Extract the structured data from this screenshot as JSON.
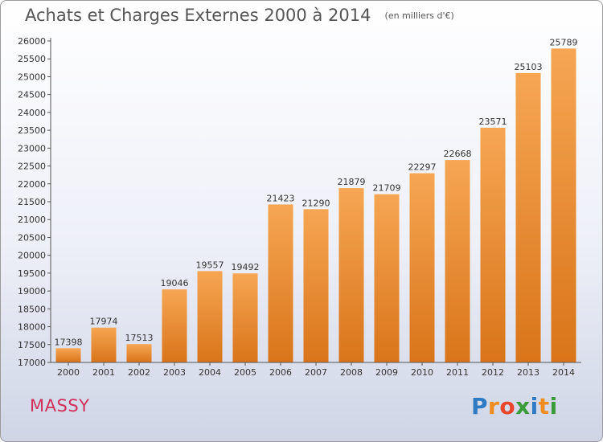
{
  "title": "Achats et Charges Externes 2000 à 2014",
  "subtitle": "(en milliers d'€)",
  "city": "MASSY",
  "logo": {
    "text": "Proxiti",
    "letters": [
      "P",
      "r",
      "o",
      "x",
      "i",
      "t",
      "i"
    ],
    "colors": [
      "#2e7bc4",
      "#f08c1e",
      "#e8452c",
      "#3a9b3a",
      "#2e7bc4",
      "#f08c1e",
      "#3a9b3a"
    ]
  },
  "colors": {
    "bar_top": "#f6a653",
    "bar_bottom": "#d97419",
    "title": "#555555",
    "city": "#d0305a"
  },
  "chart_data": {
    "type": "bar",
    "categories": [
      "2000",
      "2001",
      "2002",
      "2003",
      "2004",
      "2005",
      "2006",
      "2007",
      "2008",
      "2009",
      "2010",
      "2011",
      "2012",
      "2013",
      "2014"
    ],
    "values": [
      17398,
      17974,
      17513,
      19046,
      19557,
      19492,
      21423,
      21290,
      21879,
      21709,
      22297,
      22668,
      23571,
      25103,
      25789
    ],
    "title": "Achats et Charges Externes 2000 à 2014",
    "ylim": [
      17000,
      26000
    ],
    "ytick_step": 500,
    "grid": false,
    "legend": "none"
  }
}
